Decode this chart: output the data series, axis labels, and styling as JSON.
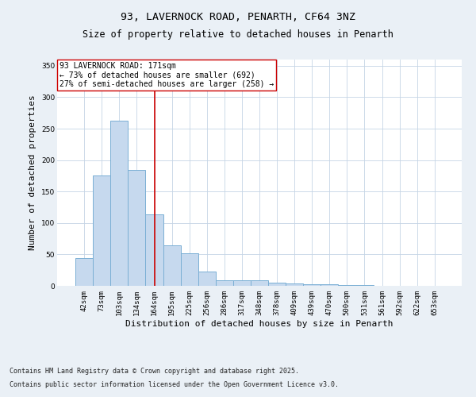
{
  "title": "93, LAVERNOCK ROAD, PENARTH, CF64 3NZ",
  "subtitle": "Size of property relative to detached houses in Penarth",
  "xlabel": "Distribution of detached houses by size in Penarth",
  "ylabel": "Number of detached properties",
  "bar_labels": [
    "42sqm",
    "73sqm",
    "103sqm",
    "134sqm",
    "164sqm",
    "195sqm",
    "225sqm",
    "256sqm",
    "286sqm",
    "317sqm",
    "348sqm",
    "378sqm",
    "409sqm",
    "439sqm",
    "470sqm",
    "500sqm",
    "531sqm",
    "561sqm",
    "592sqm",
    "622sqm",
    "653sqm"
  ],
  "bar_values": [
    44,
    176,
    263,
    184,
    114,
    65,
    52,
    23,
    9,
    9,
    9,
    5,
    4,
    3,
    3,
    1,
    1,
    0,
    0,
    0,
    0
  ],
  "bar_color": "#c6d9ee",
  "bar_edge_color": "#7aafd4",
  "vline_x": 4,
  "vline_color": "#cc0000",
  "annotation_text": "93 LAVERNOCK ROAD: 171sqm\n← 73% of detached houses are smaller (692)\n27% of semi-detached houses are larger (258) →",
  "annotation_box_color": "#ffffff",
  "annotation_box_edge_color": "#cc0000",
  "ylim": [
    0,
    360
  ],
  "yticks": [
    0,
    50,
    100,
    150,
    200,
    250,
    300,
    350
  ],
  "footnote1": "Contains HM Land Registry data © Crown copyright and database right 2025.",
  "footnote2": "Contains public sector information licensed under the Open Government Licence v3.0.",
  "bg_color": "#eaf0f6",
  "plot_bg_color": "#ffffff",
  "grid_color": "#c5d5e5",
  "title_fontsize": 9.5,
  "subtitle_fontsize": 8.5,
  "footnote_fontsize": 6.0,
  "tick_fontsize": 6.5,
  "label_fontsize": 8,
  "annotation_fontsize": 7.0
}
